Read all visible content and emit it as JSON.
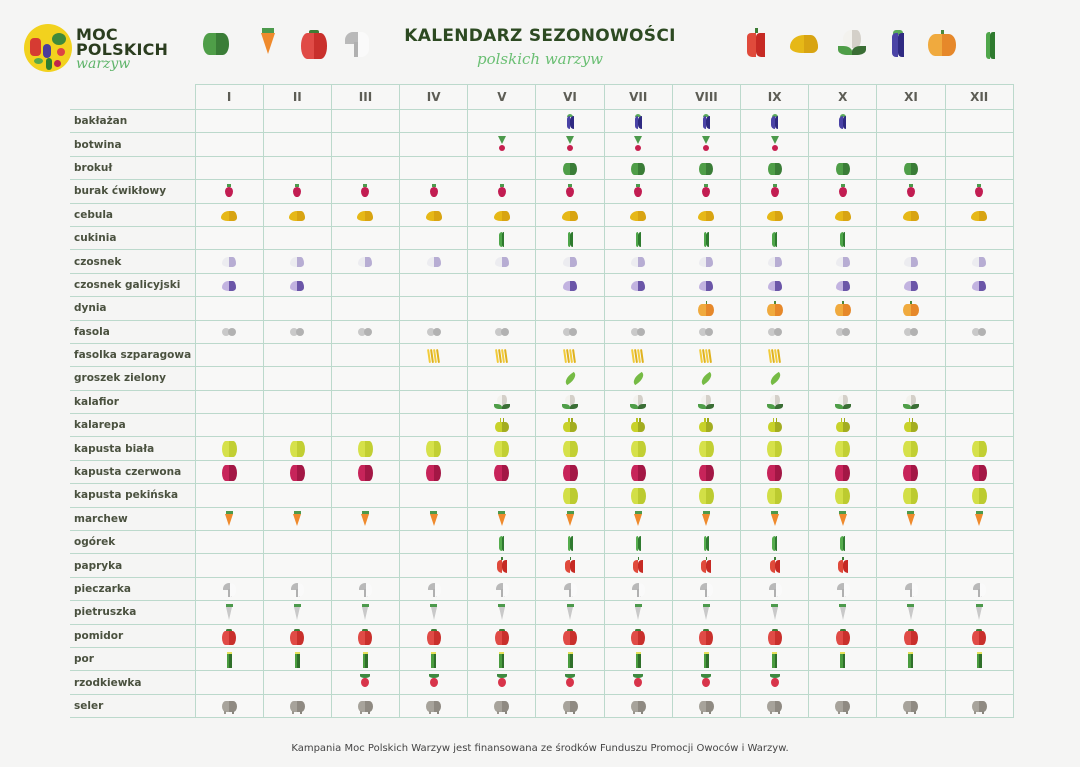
{
  "brand": {
    "line1": "MOC",
    "line2": "POLSKICH",
    "line3": "warzyw"
  },
  "title": {
    "main": "KALENDARZ SEZONOWOŚCI",
    "sub": "polskich warzyw"
  },
  "header_icons_left": [
    "broccoli-icon",
    "carrot-icon",
    "tomato-icon",
    "mushroom-icon"
  ],
  "header_icons_right": [
    "pepper-icon",
    "onion-icon",
    "cauliflower-icon",
    "eggplant-icon",
    "pumpkin-icon",
    "zucchini-icon"
  ],
  "footer": "Kampania Moc Polskich Warzyw jest finansowana ze środków Funduszu Promocji Owoców i Warzyw.",
  "colors": {
    "grid_line": "#bcd9cc",
    "title_green": "#2d4a22",
    "script_green": "#6abf73",
    "background": "#f5f5f4"
  },
  "chart_data": {
    "type": "table",
    "title": "KALENDARZ SEZONOWOŚCI polskich warzyw",
    "columns": [
      "I",
      "II",
      "III",
      "IV",
      "V",
      "VI",
      "VII",
      "VIII",
      "IX",
      "X",
      "XI",
      "XII"
    ],
    "rows": [
      {
        "name": "bakłażan",
        "icon": "eggplant",
        "months": [
          6,
          7,
          8,
          9,
          10
        ]
      },
      {
        "name": "botwina",
        "icon": "beet-greens",
        "months": [
          5,
          6,
          7,
          8,
          9
        ]
      },
      {
        "name": "brokuł",
        "icon": "broccoli",
        "months": [
          6,
          7,
          8,
          9,
          10,
          11
        ]
      },
      {
        "name": "burak ćwikłowy",
        "icon": "beet",
        "months": [
          1,
          2,
          3,
          4,
          5,
          6,
          7,
          8,
          9,
          10,
          11,
          12
        ]
      },
      {
        "name": "cebula",
        "icon": "onion",
        "months": [
          1,
          2,
          3,
          4,
          5,
          6,
          7,
          8,
          9,
          10,
          11,
          12
        ]
      },
      {
        "name": "cukinia",
        "icon": "zucchini",
        "months": [
          5,
          6,
          7,
          8,
          9,
          10
        ]
      },
      {
        "name": "czosnek",
        "icon": "garlic",
        "months": [
          1,
          2,
          3,
          4,
          5,
          6,
          7,
          8,
          9,
          10,
          11,
          12
        ]
      },
      {
        "name": "czosnek galicyjski",
        "icon": "garlic-purple",
        "months": [
          1,
          2,
          6,
          7,
          8,
          9,
          10,
          11,
          12
        ]
      },
      {
        "name": "dynia",
        "icon": "pumpkin",
        "months": [
          8,
          9,
          10,
          11
        ]
      },
      {
        "name": "fasola",
        "icon": "bean",
        "months": [
          1,
          2,
          3,
          4,
          5,
          6,
          7,
          8,
          9,
          10,
          11,
          12
        ]
      },
      {
        "name": "fasolka szparagowa",
        "icon": "green-beans",
        "months": [
          4,
          5,
          6,
          7,
          8,
          9
        ]
      },
      {
        "name": "groszek zielony",
        "icon": "peas",
        "months": [
          6,
          7,
          8,
          9
        ]
      },
      {
        "name": "kalafior",
        "icon": "cauliflower",
        "months": [
          5,
          6,
          7,
          8,
          9,
          10,
          11
        ]
      },
      {
        "name": "kalarepa",
        "icon": "kohlrabi",
        "months": [
          5,
          6,
          7,
          8,
          9,
          10,
          11
        ]
      },
      {
        "name": "kapusta biała",
        "icon": "cabbage-white",
        "months": [
          1,
          2,
          3,
          4,
          5,
          6,
          7,
          8,
          9,
          10,
          11,
          12
        ]
      },
      {
        "name": "kapusta czerwona",
        "icon": "cabbage-red",
        "months": [
          1,
          2,
          3,
          4,
          5,
          6,
          7,
          8,
          9,
          10,
          11,
          12
        ]
      },
      {
        "name": "kapusta pekińska",
        "icon": "cabbage-chinese",
        "months": [
          6,
          7,
          8,
          9,
          10,
          11,
          12
        ]
      },
      {
        "name": "marchew",
        "icon": "carrot",
        "months": [
          1,
          2,
          3,
          4,
          5,
          6,
          7,
          8,
          9,
          10,
          11,
          12
        ]
      },
      {
        "name": "ogórek",
        "icon": "cucumber",
        "months": [
          5,
          6,
          7,
          8,
          9,
          10
        ]
      },
      {
        "name": "papryka",
        "icon": "pepper",
        "months": [
          5,
          6,
          7,
          8,
          9,
          10
        ]
      },
      {
        "name": "pieczarka",
        "icon": "mushroom",
        "months": [
          1,
          2,
          3,
          4,
          5,
          6,
          7,
          8,
          9,
          10,
          11,
          12
        ]
      },
      {
        "name": "pietruszka",
        "icon": "parsley-root",
        "months": [
          1,
          2,
          3,
          4,
          5,
          6,
          7,
          8,
          9,
          10,
          11,
          12
        ]
      },
      {
        "name": "pomidor",
        "icon": "tomato",
        "months": [
          1,
          2,
          3,
          4,
          5,
          6,
          7,
          8,
          9,
          10,
          11,
          12
        ]
      },
      {
        "name": "por",
        "icon": "leek",
        "months": [
          1,
          2,
          3,
          4,
          5,
          6,
          7,
          8,
          9,
          10,
          11,
          12
        ]
      },
      {
        "name": "rzodkiewka",
        "icon": "radish",
        "months": [
          3,
          4,
          5,
          6,
          7,
          8,
          9
        ]
      },
      {
        "name": "seler",
        "icon": "celeriac",
        "months": [
          1,
          2,
          3,
          4,
          5,
          6,
          7,
          8,
          9,
          10,
          11,
          12
        ]
      }
    ]
  }
}
